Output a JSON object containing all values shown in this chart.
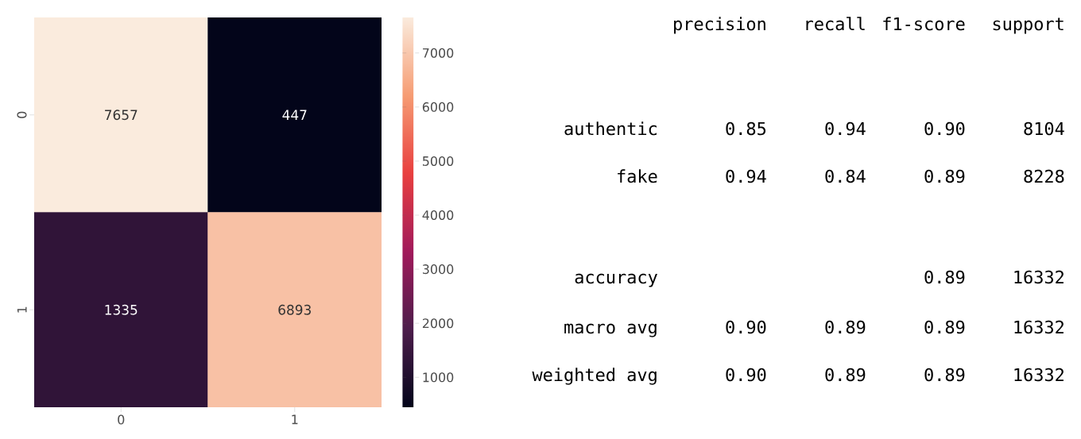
{
  "chart_data": [
    {
      "type": "heatmap",
      "categories": [
        "0",
        "1"
      ],
      "y_categories": [
        "0",
        "1"
      ],
      "cells": [
        [
          7657,
          447
        ],
        [
          1335,
          6893
        ]
      ],
      "data_labels": true,
      "clim": [
        447,
        7657
      ],
      "cticks": [
        1000,
        2000,
        3000,
        4000,
        5000,
        6000,
        7000
      ]
    },
    {
      "type": "other",
      "categories": [
        "precision",
        "recall",
        "f1-score",
        "support"
      ],
      "y_categories": [
        "authentic",
        "fake",
        "accuracy",
        "macro avg",
        "weighted avg"
      ],
      "cell_labels": [
        [
          "0.85",
          "0.94",
          "0.90",
          "8104"
        ],
        [
          "0.94",
          "0.84",
          "0.89",
          "8228"
        ],
        [
          null,
          null,
          "0.89",
          "16332"
        ],
        [
          "0.90",
          "0.89",
          "0.89",
          "16332"
        ],
        [
          "0.90",
          "0.89",
          "0.89",
          "16332"
        ]
      ]
    }
  ]
}
